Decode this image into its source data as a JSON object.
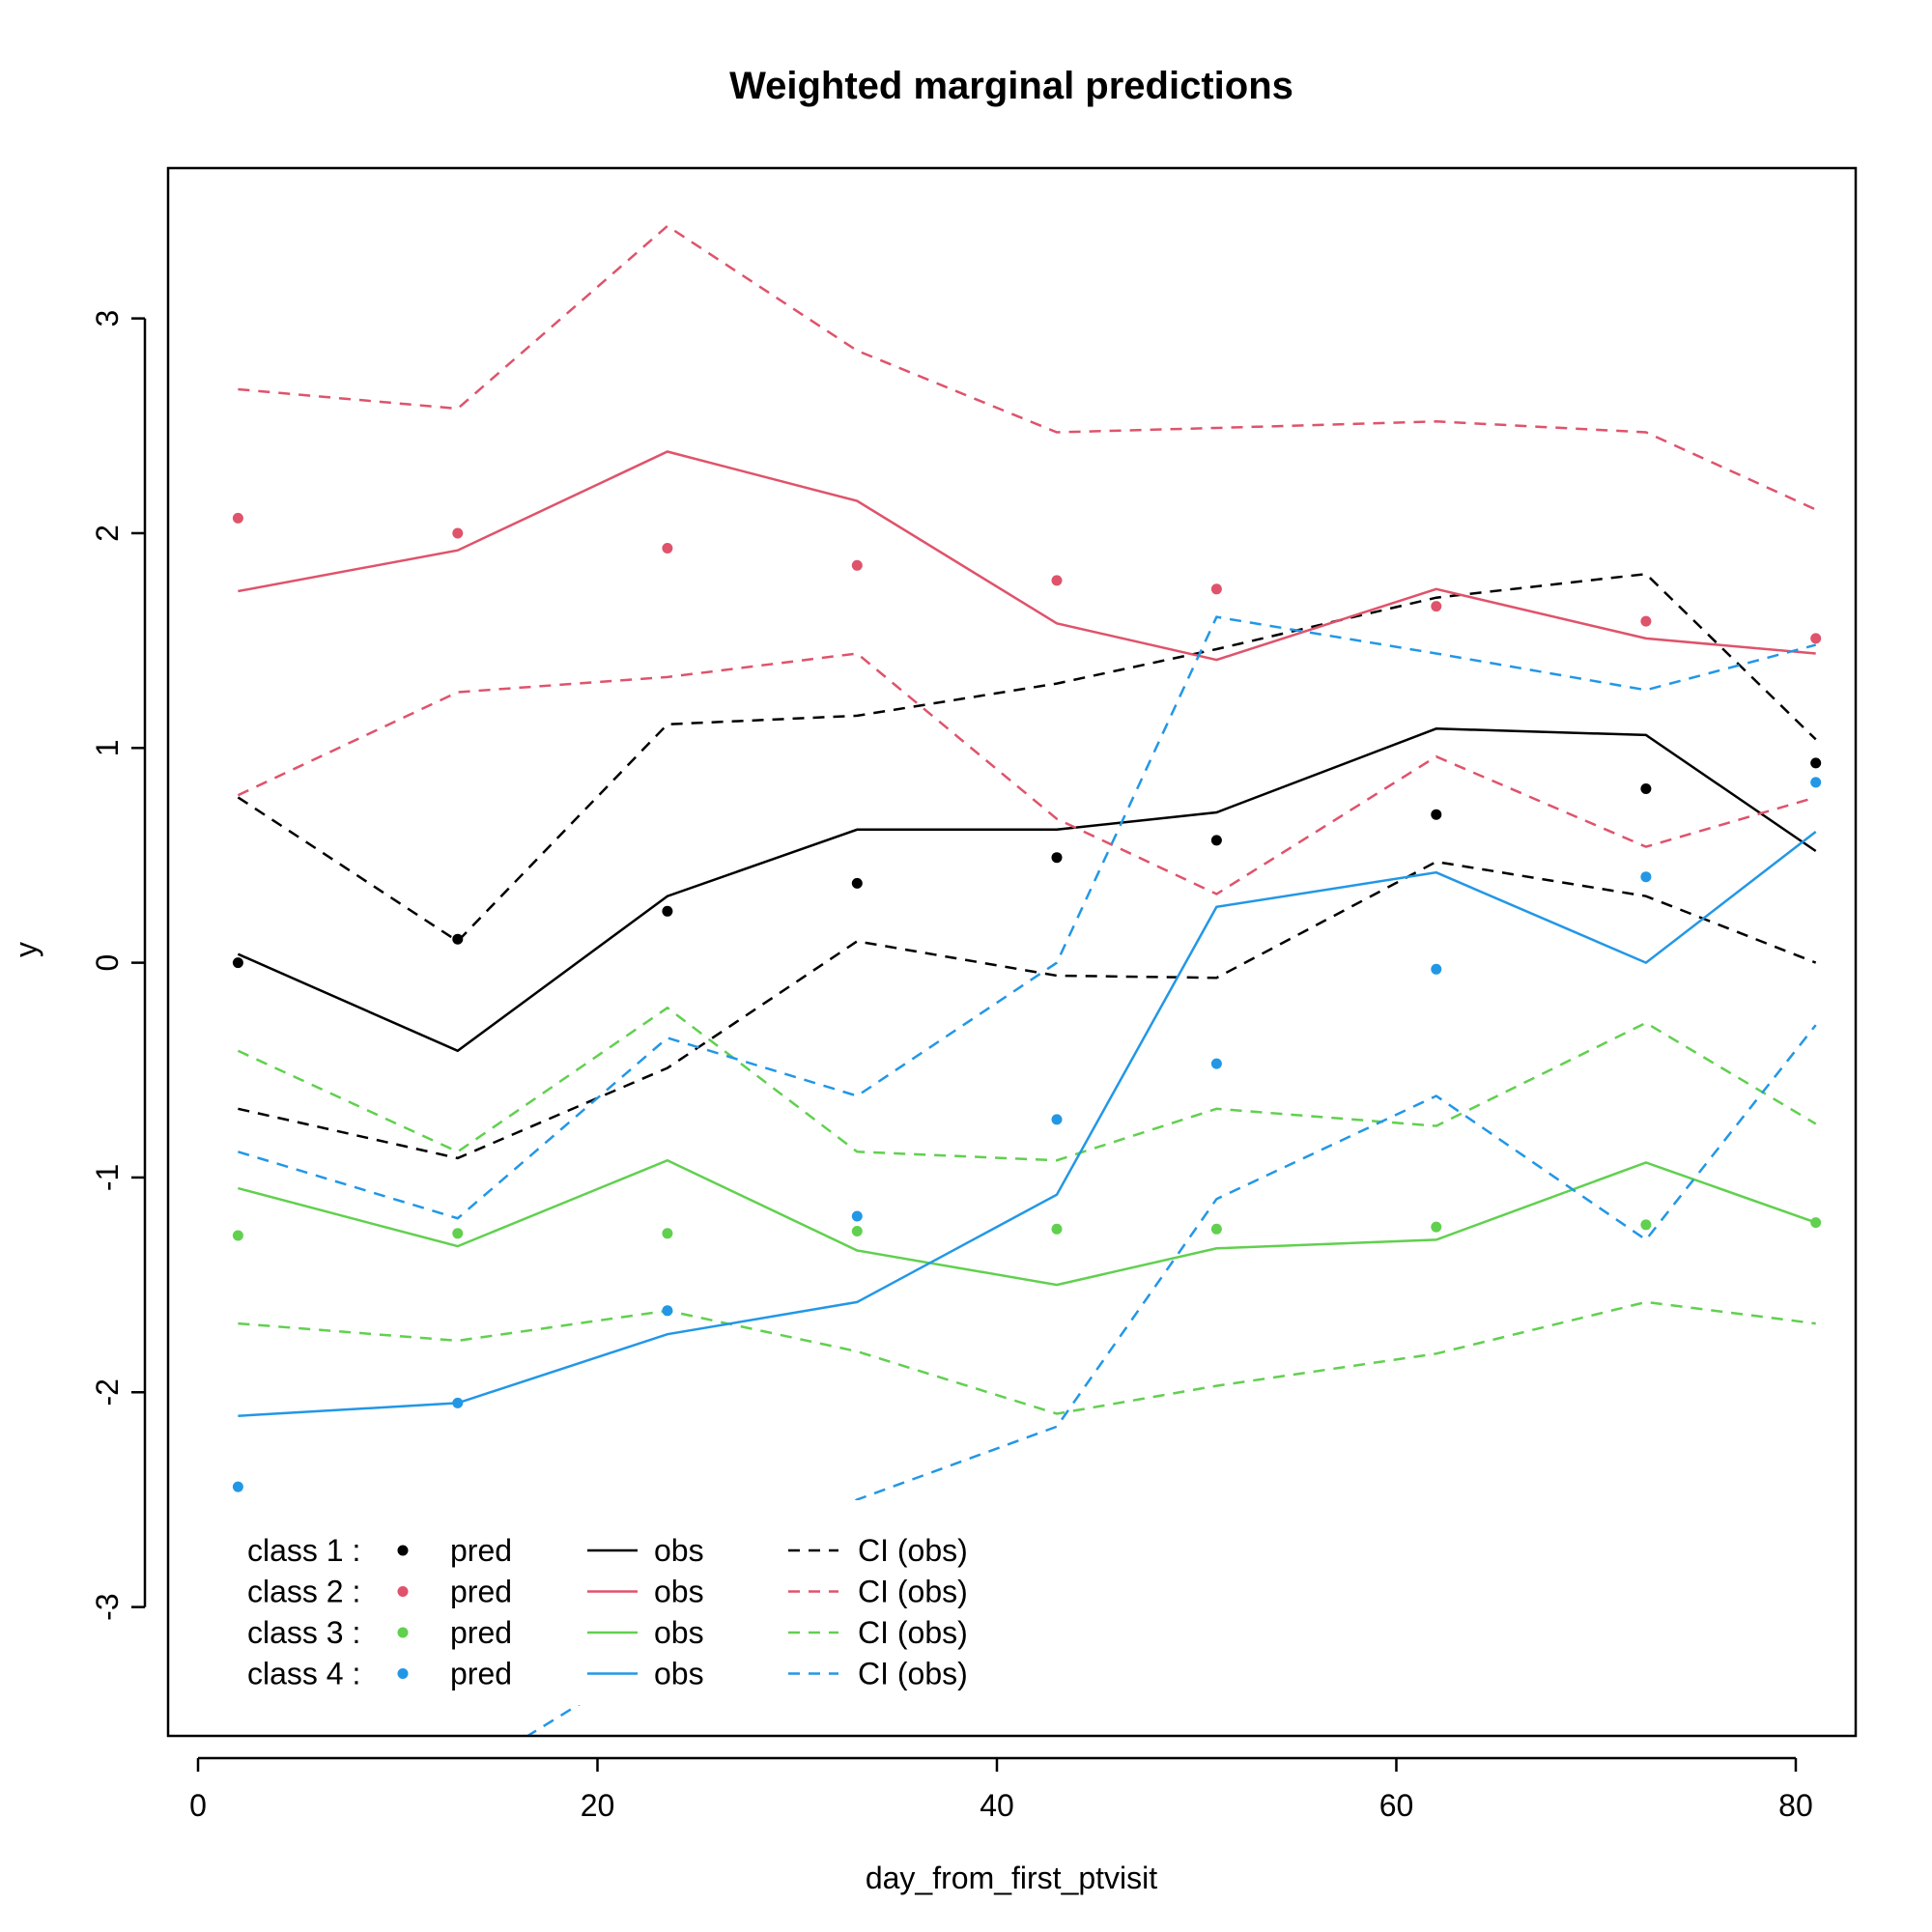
{
  "chart_data": {
    "type": "line",
    "title": "Weighted marginal predictions",
    "xlabel": "day_from_first_ptvisit",
    "ylabel": "y",
    "xlim": [
      -1.5,
      83
    ],
    "ylim": [
      -3.6,
      3.7
    ],
    "xticks": [
      0,
      20,
      40,
      60,
      80
    ],
    "yticks": [
      -3,
      -2,
      -1,
      0,
      1,
      2,
      3
    ],
    "xtick_labels": [
      "0",
      "20",
      "40",
      "60",
      "80"
    ],
    "ytick_labels": [
      "-3",
      "-2",
      "-1",
      "0",
      "1",
      "2",
      "3"
    ],
    "grid": false,
    "legend_placement": "bottom-left",
    "x": [
      2,
      13,
      23.5,
      33,
      43,
      51,
      62,
      72.5,
      81
    ],
    "series": [
      {
        "name": "class 1",
        "color": "#000000",
        "pred": [
          0.0,
          0.11,
          0.24,
          0.37,
          0.49,
          0.57,
          0.69,
          0.81,
          0.93
        ],
        "obs": [
          0.04,
          -0.41,
          0.31,
          0.62,
          0.62,
          0.7,
          1.09,
          1.06,
          0.52
        ],
        "ci_upper": [
          0.77,
          0.1,
          1.11,
          1.15,
          1.3,
          1.46,
          1.7,
          1.81,
          1.04
        ],
        "ci_lower": [
          -0.68,
          -0.91,
          -0.49,
          0.1,
          -0.06,
          -0.07,
          0.47,
          0.31,
          0.0
        ]
      },
      {
        "name": "class 2",
        "color": "#DF536B",
        "pred": [
          2.07,
          2.0,
          1.93,
          1.85,
          1.78,
          1.74,
          1.66,
          1.59,
          1.51
        ],
        "obs": [
          1.73,
          1.92,
          2.38,
          2.15,
          1.58,
          1.41,
          1.74,
          1.51,
          1.44
        ],
        "ci_upper": [
          2.67,
          2.58,
          3.43,
          2.85,
          2.47,
          2.49,
          2.52,
          2.47,
          2.11
        ],
        "ci_lower": [
          0.78,
          1.26,
          1.33,
          1.44,
          0.67,
          0.32,
          0.96,
          0.54,
          0.77
        ]
      },
      {
        "name": "class 3",
        "color": "#61D04F",
        "pred": [
          -1.27,
          -1.26,
          -1.26,
          -1.25,
          -1.24,
          -1.24,
          -1.23,
          -1.22,
          -1.21
        ],
        "obs": [
          -1.05,
          -1.32,
          -0.92,
          -1.34,
          -1.5,
          -1.33,
          -1.29,
          -0.93,
          -1.21
        ],
        "ci_upper": [
          -0.41,
          -0.88,
          -0.21,
          -0.88,
          -0.92,
          -0.68,
          -0.76,
          -0.28,
          -0.75
        ],
        "ci_lower": [
          -1.68,
          -1.76,
          -1.62,
          -1.81,
          -2.1,
          -1.97,
          -1.82,
          -1.58,
          -1.68
        ]
      },
      {
        "name": "class 4",
        "color": "#2297E6",
        "pred": [
          -2.44,
          -2.05,
          -1.62,
          -1.18,
          -0.73,
          -0.47,
          -0.03,
          0.4,
          0.84
        ],
        "obs": [
          -2.11,
          -2.05,
          -1.73,
          -1.58,
          -1.08,
          0.26,
          0.42,
          0.0,
          0.61
        ],
        "ci_upper": [
          -0.88,
          -1.19,
          -0.35,
          -0.62,
          0.0,
          1.61,
          1.44,
          1.27,
          1.48
        ],
        "ci_lower": [
          -4.0,
          -3.8,
          -3.2,
          -2.5,
          -2.16,
          -1.1,
          -0.62,
          -1.29,
          -0.29
        ]
      }
    ],
    "legend": {
      "rows": [
        {
          "class_label": "class 1 :",
          "pred": "pred",
          "obs": "obs",
          "ci": "CI (obs)",
          "color": "#000000"
        },
        {
          "class_label": "class 2 :",
          "pred": "pred",
          "obs": "obs",
          "ci": "CI (obs)",
          "color": "#DF536B"
        },
        {
          "class_label": "class 3 :",
          "pred": "pred",
          "obs": "obs",
          "ci": "CI (obs)",
          "color": "#61D04F"
        },
        {
          "class_label": "class 4 :",
          "pred": "pred",
          "obs": "obs",
          "ci": "CI (obs)",
          "color": "#2297E6"
        }
      ]
    }
  }
}
